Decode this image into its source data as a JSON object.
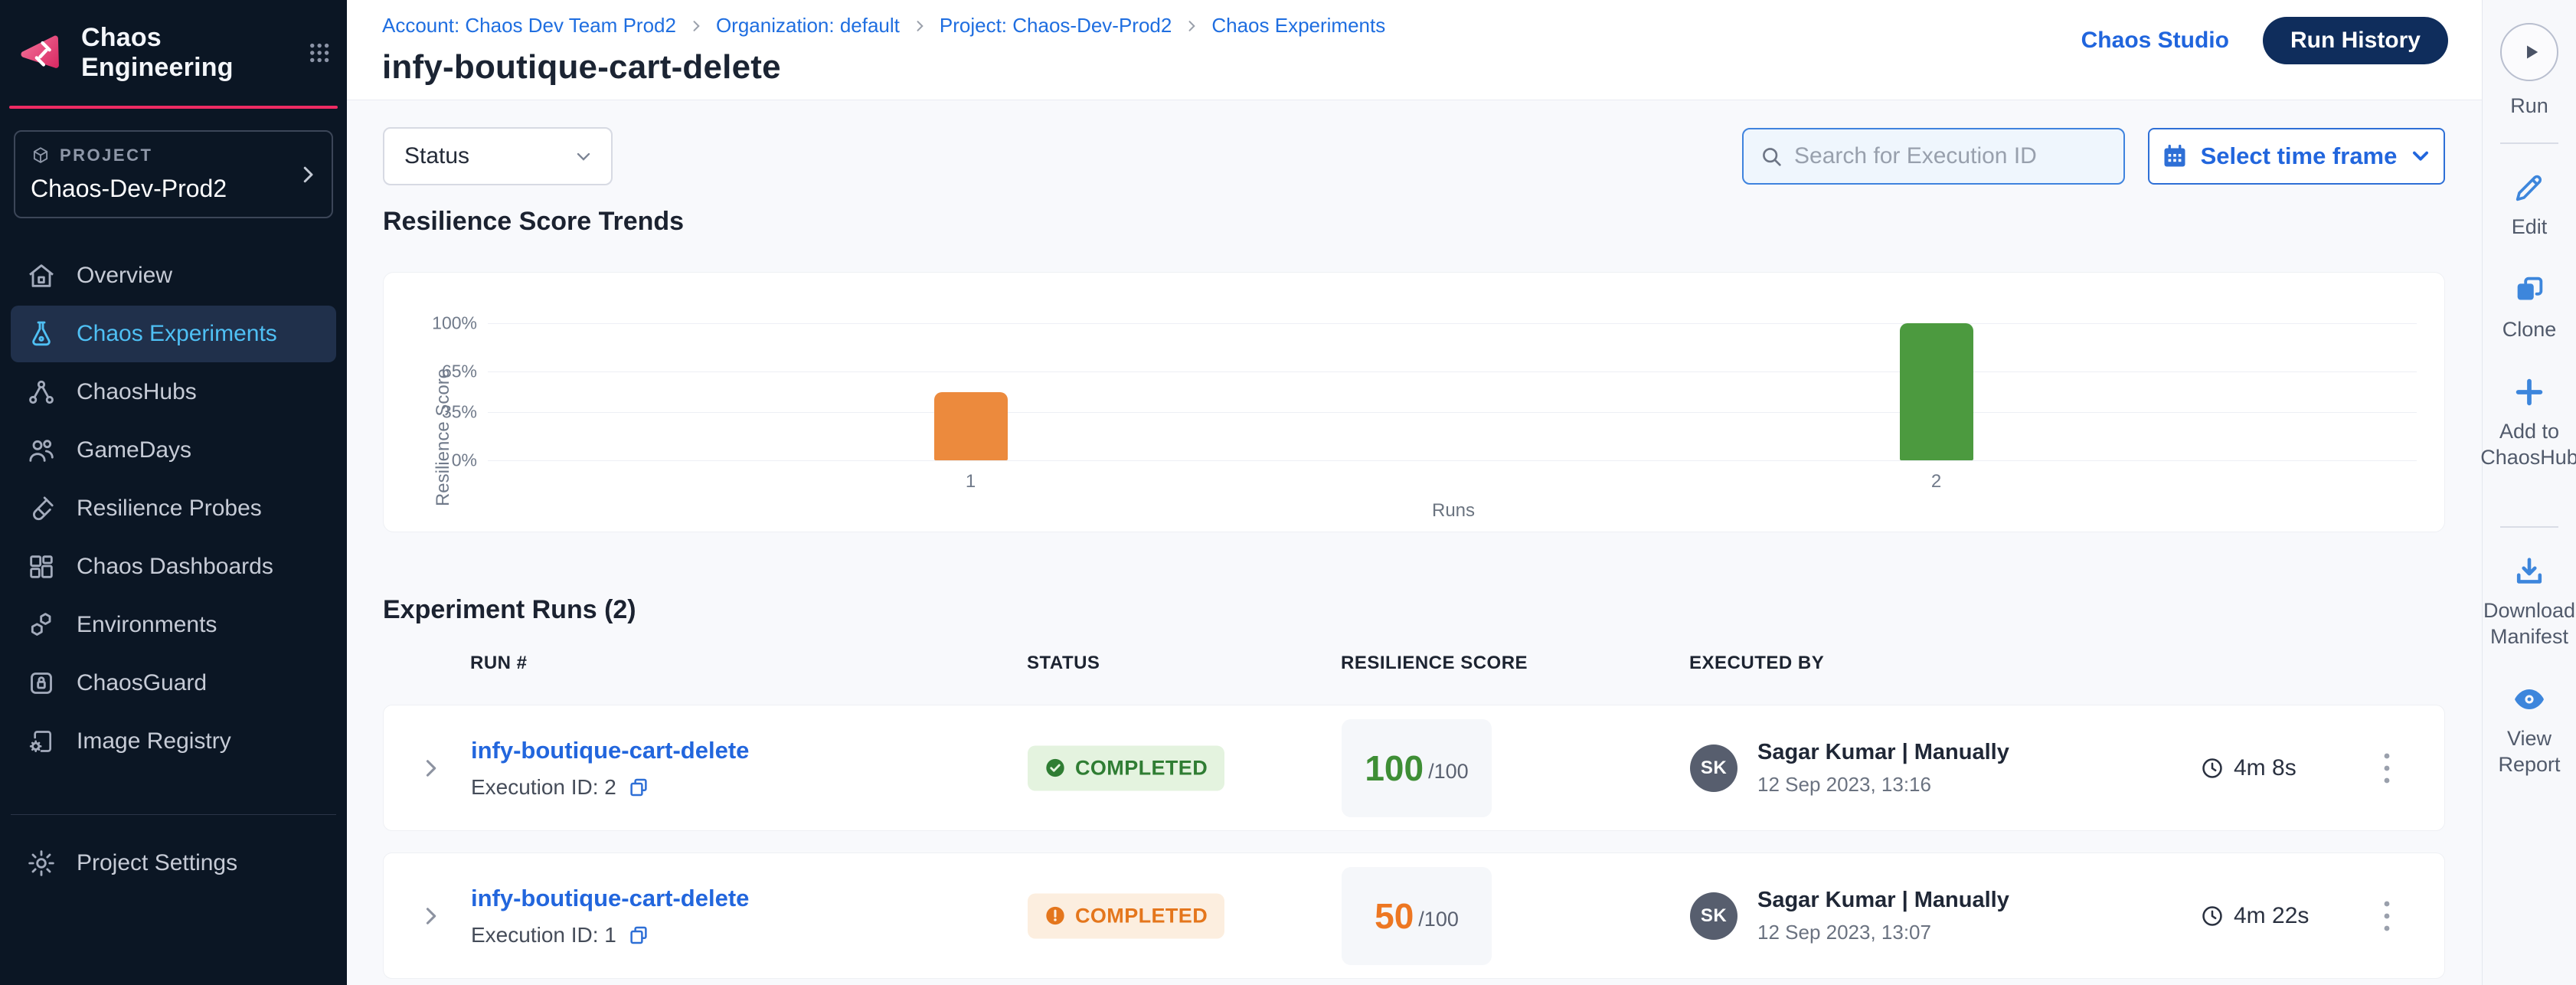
{
  "app": {
    "brand": "Chaos Engineering"
  },
  "sidebar": {
    "project_label": "PROJECT",
    "project_name": "Chaos-Dev-Prod2",
    "items": [
      {
        "label": "Overview",
        "icon": "home-icon",
        "active": false
      },
      {
        "label": "Chaos Experiments",
        "icon": "flask-icon",
        "active": true
      },
      {
        "label": "ChaosHubs",
        "icon": "hub-icon",
        "active": false
      },
      {
        "label": "GameDays",
        "icon": "people-icon",
        "active": false
      },
      {
        "label": "Resilience Probes",
        "icon": "probe-icon",
        "active": false
      },
      {
        "label": "Chaos Dashboards",
        "icon": "dashboard-icon",
        "active": false
      },
      {
        "label": "Environments",
        "icon": "hexagons-icon",
        "active": false
      },
      {
        "label": "ChaosGuard",
        "icon": "lock-shield-icon",
        "active": false
      },
      {
        "label": "Image Registry",
        "icon": "registry-gear-icon",
        "active": false
      }
    ],
    "settings_item": {
      "label": "Project Settings",
      "icon": "gear-icon"
    }
  },
  "header": {
    "breadcrumbs": [
      "Account: Chaos Dev Team Prod2",
      "Organization: default",
      "Project: Chaos-Dev-Prod2",
      "Chaos Experiments"
    ],
    "page_title": "infy-boutique-cart-delete",
    "chaos_studio_link": "Chaos Studio",
    "run_history_button": "Run History"
  },
  "right_rail": {
    "run": {
      "label": "Run",
      "icon": "play-icon"
    },
    "actions": [
      {
        "label": "Edit",
        "icon": "pencil-icon"
      },
      {
        "label": "Clone",
        "icon": "clone-icon"
      },
      {
        "label": "Add to ChaosHub",
        "icon": "plus-icon"
      },
      {
        "label": "Download Manifest",
        "icon": "download-icon"
      },
      {
        "label": "View Report",
        "icon": "eye-icon"
      }
    ]
  },
  "filters": {
    "status_label": "Status",
    "search_placeholder": "Search for Execution ID",
    "time_frame_label": "Select time frame"
  },
  "trends": {
    "title": "Resilience Score Trends"
  },
  "chart_data": {
    "type": "bar",
    "title": "Resilience Score Trends",
    "categories": [
      "1",
      "2"
    ],
    "values": [
      50,
      100
    ],
    "colors": [
      "#ec8a3d",
      "#4c9a3f"
    ],
    "xlabel": "Runs",
    "ylabel": "Resilience Score",
    "yticks": [
      "0%",
      "35%",
      "65%",
      "100%"
    ],
    "ylim": [
      0,
      100
    ],
    "grid": "horizontal",
    "legend": "none"
  },
  "runs": {
    "title": "Experiment Runs (2)",
    "columns": [
      "RUN #",
      "STATUS",
      "RESILIENCE SCORE",
      "EXECUTED BY"
    ],
    "rows": [
      {
        "name": "infy-boutique-cart-delete",
        "execution_id": "Execution ID: 2",
        "status": "COMPLETED",
        "status_kind": "success",
        "score": "100",
        "score_suffix": "/100",
        "avatar_initials": "SK",
        "executed_by": "Sagar Kumar | Manually",
        "executed_at": "12 Sep 2023, 13:16",
        "duration": "4m 8s"
      },
      {
        "name": "infy-boutique-cart-delete",
        "execution_id": "Execution ID: 1",
        "status": "COMPLETED",
        "status_kind": "warning",
        "score": "50",
        "score_suffix": "/100",
        "avatar_initials": "SK",
        "executed_by": "Sagar Kumar | Manually",
        "executed_at": "12 Sep 2023, 13:07",
        "duration": "4m 22s"
      }
    ]
  }
}
